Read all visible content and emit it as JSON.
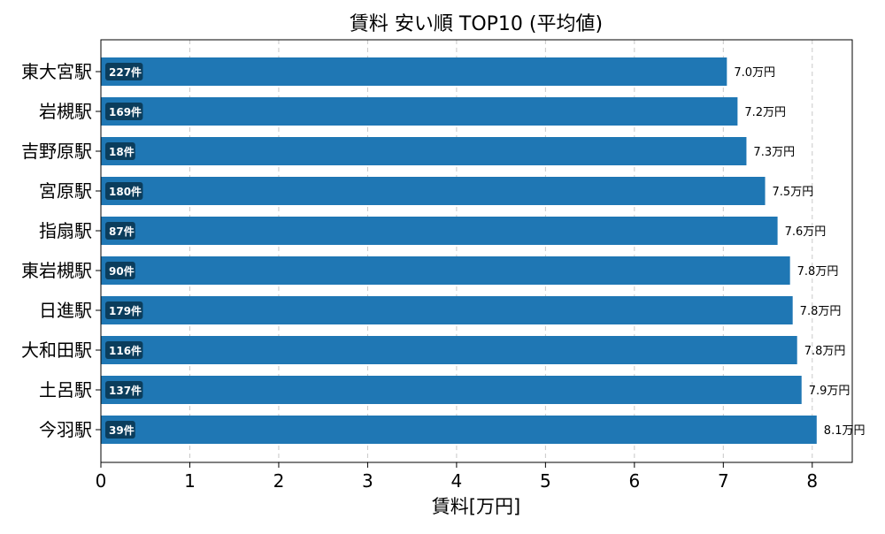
{
  "chart_data": {
    "type": "bar",
    "orientation": "horizontal",
    "title": "賃料 安い順 TOP10 (平均値)",
    "xlabel": "賃料[万円]",
    "ylabel": "",
    "xlim": [
      0,
      8.45
    ],
    "xticks": [
      0,
      1,
      2,
      3,
      4,
      5,
      6,
      7,
      8
    ],
    "grid": "x-dashed",
    "bar_color": "#1f77b4",
    "badge_color": "#0b3d5c",
    "categories": [
      "東大宮駅",
      "岩槻駅",
      "吉野原駅",
      "宮原駅",
      "指扇駅",
      "東岩槻駅",
      "日進駅",
      "大和田駅",
      "土呂駅",
      "今羽駅"
    ],
    "values": [
      7.04,
      7.16,
      7.26,
      7.47,
      7.61,
      7.75,
      7.78,
      7.83,
      7.88,
      8.05
    ],
    "value_labels": [
      "7.0万円",
      "7.2万円",
      "7.3万円",
      "7.5万円",
      "7.6万円",
      "7.8万円",
      "7.8万円",
      "7.8万円",
      "7.9万円",
      "8.1万円"
    ],
    "count_labels": [
      "227件",
      "169件",
      "18件",
      "180件",
      "87件",
      "90件",
      "179件",
      "116件",
      "137件",
      "39件"
    ]
  }
}
